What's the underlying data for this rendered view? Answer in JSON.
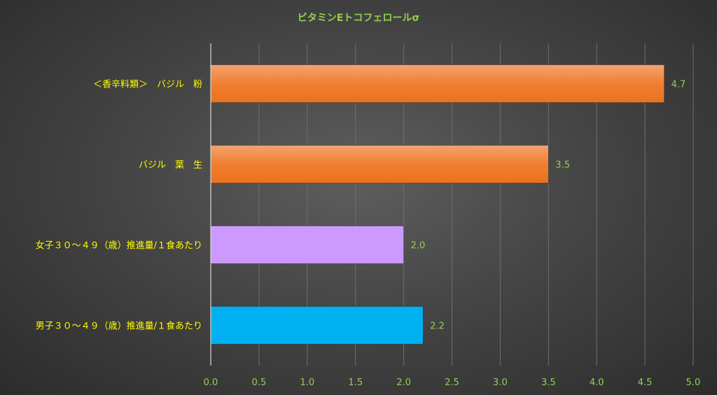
{
  "chart_data": {
    "type": "bar",
    "orientation": "horizontal",
    "title": "ビタミンEトコフェロールσ",
    "categories": [
      "＜香辛料類＞　バジル　粉",
      "バジル　葉　生",
      "女子３０～４９（歳）推進量/１食あたり",
      "男子３０～４９（歳）推進量/１食あたり"
    ],
    "values": [
      4.7,
      3.5,
      2.0,
      2.2
    ],
    "value_labels": [
      "4.7",
      "3.5",
      "2.0",
      "2.2"
    ],
    "bar_colors": [
      "#ed7d31",
      "#ed7d31",
      "#cc99ff",
      "#00b0f0"
    ],
    "xlim": [
      0,
      5
    ],
    "x_ticks": [
      "0.0",
      "0.5",
      "1.0",
      "1.5",
      "2.0",
      "2.5",
      "3.0",
      "3.5",
      "4.0",
      "4.5",
      "5.0"
    ],
    "grid": true,
    "legend": "none",
    "colors": {
      "title": "#92d050",
      "category_label": "#ffff00",
      "tick_label": "#92d050",
      "value_label": "#92d050",
      "gridline": "#6e6e6e",
      "axis": "#d9d9d9"
    }
  }
}
